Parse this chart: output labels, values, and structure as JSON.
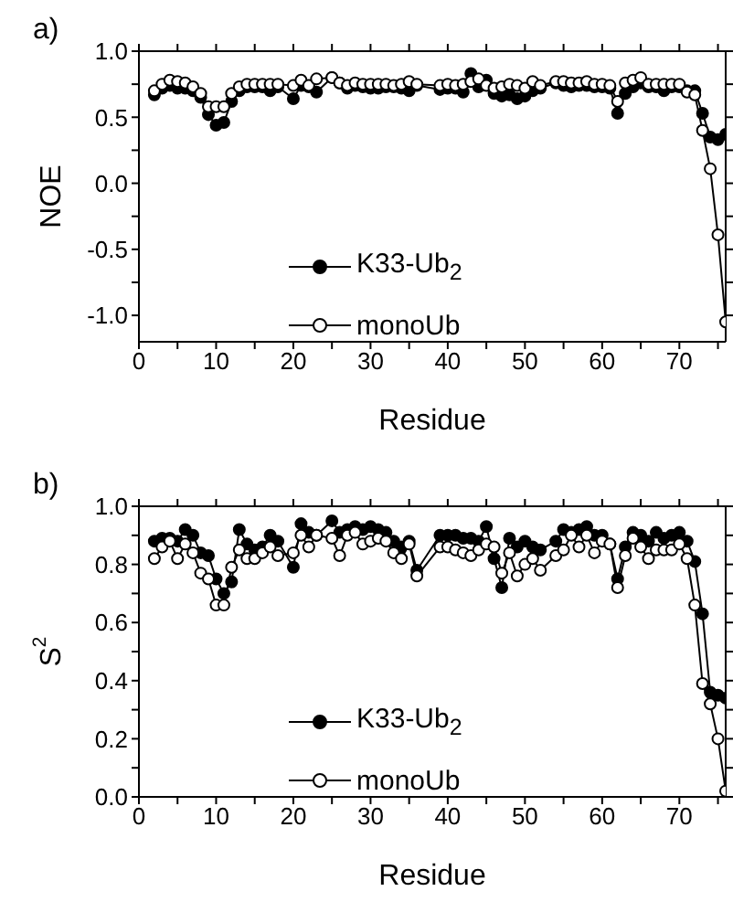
{
  "chart_data": [
    {
      "type": "line",
      "title": "a)",
      "xlabel": "Residue",
      "ylabel": "NOE",
      "marker": "circle",
      "line_style": "solid",
      "legend": "bottom",
      "xlim": [
        0,
        76
      ],
      "xticks": [
        0,
        {
          "value": 5,
          "label": null
        },
        10,
        {
          "value": 15,
          "label": null
        },
        20,
        {
          "value": 25,
          "label": null
        },
        30,
        {
          "value": 35,
          "label": null
        },
        40,
        {
          "value": 45,
          "label": null
        },
        50,
        {
          "value": 55,
          "label": null
        },
        60,
        {
          "value": 65,
          "label": null
        },
        70,
        {
          "value": 75,
          "label": null
        }
      ],
      "ylim": [
        -1.2,
        1.0
      ],
      "yticks": [
        {
          "value": -1.0,
          "label": "-1.0"
        },
        {
          "value": -0.75,
          "label": null
        },
        {
          "value": -0.5,
          "label": "-0.5"
        },
        {
          "value": -0.25,
          "label": null
        },
        {
          "value": 0,
          "label": "0.0"
        },
        {
          "value": 0.25,
          "label": null
        },
        {
          "value": 0.5,
          "label": "0.5"
        },
        {
          "value": 0.75,
          "label": null
        },
        {
          "value": 1.0,
          "label": "1.0"
        }
      ],
      "x": [
        2,
        3,
        4,
        5,
        6,
        7,
        8,
        9,
        10,
        11,
        12,
        13,
        14,
        15,
        16,
        17,
        18,
        20,
        21,
        22,
        23,
        25,
        26,
        27,
        28,
        29,
        30,
        31,
        32,
        33,
        34,
        35,
        36,
        39,
        40,
        41,
        42,
        43,
        44,
        45,
        46,
        47,
        48,
        49,
        50,
        51,
        52,
        54,
        55,
        56,
        57,
        58,
        59,
        60,
        61,
        62,
        63,
        64,
        65,
        66,
        67,
        68,
        69,
        70,
        71,
        72,
        73,
        74,
        75,
        76
      ],
      "series": [
        {
          "name": "K33-Ub$_{2}$",
          "color": "#000000",
          "values": [
            0.67,
            0.72,
            0.74,
            0.72,
            0.72,
            0.7,
            0.65,
            0.52,
            0.44,
            0.46,
            0.62,
            0.7,
            0.73,
            0.73,
            0.73,
            0.7,
            0.73,
            0.64,
            0.74,
            0.73,
            0.69,
            0.8,
            0.76,
            0.72,
            0.74,
            0.73,
            0.72,
            0.72,
            0.73,
            0.73,
            0.72,
            0.7,
            0.74,
            0.71,
            0.72,
            0.72,
            0.69,
            0.83,
            0.73,
            0.78,
            0.68,
            0.66,
            0.67,
            0.64,
            0.66,
            0.7,
            0.72,
            0.76,
            0.74,
            0.73,
            0.74,
            0.74,
            0.73,
            0.73,
            0.72,
            0.53,
            0.68,
            0.73,
            0.76,
            0.73,
            0.73,
            0.7,
            0.73,
            0.73,
            0.7,
            0.7,
            0.53,
            0.35,
            0.33,
            0.37
          ]
        },
        {
          "name": "monoUb",
          "color": "#ffffff",
          "values": [
            0.7,
            0.75,
            0.78,
            0.77,
            0.76,
            0.73,
            0.68,
            0.58,
            0.58,
            0.58,
            0.68,
            0.73,
            0.75,
            0.75,
            0.75,
            0.75,
            0.75,
            0.74,
            0.78,
            0.74,
            0.79,
            0.8,
            0.76,
            0.74,
            0.76,
            0.75,
            0.75,
            0.75,
            0.75,
            0.74,
            0.75,
            0.77,
            0.75,
            0.74,
            0.75,
            0.74,
            0.75,
            0.77,
            0.79,
            0.74,
            0.72,
            0.73,
            0.75,
            0.74,
            0.72,
            0.77,
            0.74,
            0.77,
            0.77,
            0.76,
            0.76,
            0.77,
            0.75,
            0.75,
            0.74,
            0.62,
            0.76,
            0.78,
            0.8,
            0.75,
            0.75,
            0.75,
            0.75,
            0.75,
            0.69,
            0.67,
            0.4,
            0.11,
            -0.39,
            -1.05
          ]
        }
      ]
    },
    {
      "type": "line",
      "title": "b)",
      "xlabel": "Residue",
      "ylabel": "S$^{2}$",
      "marker": "circle",
      "line_style": "solid",
      "legend": "bottom",
      "xlim": [
        0,
        76
      ],
      "xticks": [
        0,
        {
          "value": 5,
          "label": null
        },
        10,
        {
          "value": 15,
          "label": null
        },
        20,
        {
          "value": 25,
          "label": null
        },
        30,
        {
          "value": 35,
          "label": null
        },
        40,
        {
          "value": 45,
          "label": null
        },
        50,
        {
          "value": 55,
          "label": null
        },
        60,
        {
          "value": 65,
          "label": null
        },
        70,
        {
          "value": 75,
          "label": null
        }
      ],
      "ylim": [
        0,
        1.0
      ],
      "yticks": [
        {
          "value": 0,
          "label": "0.0"
        },
        {
          "value": 0.1,
          "label": null
        },
        {
          "value": 0.2,
          "label": "0.2"
        },
        {
          "value": 0.3,
          "label": null
        },
        {
          "value": 0.4,
          "label": "0.4"
        },
        {
          "value": 0.5,
          "label": null
        },
        {
          "value": 0.6,
          "label": "0.6"
        },
        {
          "value": 0.7,
          "label": null
        },
        {
          "value": 0.8,
          "label": "0.8"
        },
        {
          "value": 0.9,
          "label": null
        },
        {
          "value": 1.0,
          "label": "1.0"
        }
      ],
      "x": [
        2,
        3,
        4,
        5,
        6,
        7,
        8,
        9,
        10,
        11,
        12,
        13,
        14,
        15,
        16,
        17,
        18,
        20,
        21,
        22,
        23,
        25,
        26,
        27,
        28,
        29,
        30,
        31,
        32,
        33,
        34,
        35,
        36,
        39,
        40,
        41,
        42,
        43,
        44,
        45,
        46,
        47,
        48,
        49,
        50,
        51,
        52,
        54,
        55,
        56,
        57,
        58,
        59,
        60,
        61,
        62,
        63,
        64,
        65,
        66,
        67,
        68,
        69,
        70,
        71,
        72,
        73,
        74,
        75,
        76
      ],
      "series": [
        {
          "name": "K33-Ub$_{2}$",
          "color": "#000000",
          "values": [
            0.88,
            0.89,
            0.89,
            0.88,
            0.92,
            0.9,
            0.84,
            0.83,
            0.75,
            0.7,
            0.74,
            0.92,
            0.87,
            0.85,
            0.86,
            0.9,
            0.88,
            0.79,
            0.94,
            0.91,
            0.9,
            0.95,
            0.91,
            0.92,
            0.93,
            0.92,
            0.93,
            0.92,
            0.91,
            0.88,
            0.86,
            0.88,
            0.78,
            0.9,
            0.9,
            0.9,
            0.89,
            0.89,
            0.88,
            0.93,
            0.82,
            0.72,
            0.89,
            0.86,
            0.88,
            0.86,
            0.85,
            0.88,
            0.92,
            0.91,
            0.92,
            0.93,
            0.9,
            0.9,
            0.87,
            0.75,
            0.86,
            0.91,
            0.9,
            0.88,
            0.91,
            0.89,
            0.9,
            0.91,
            0.88,
            0.81,
            0.63,
            0.36,
            0.35,
            0.34
          ]
        },
        {
          "name": "monoUb",
          "color": "#ffffff",
          "values": [
            0.82,
            0.86,
            0.88,
            0.82,
            0.87,
            0.84,
            0.77,
            0.75,
            0.66,
            0.66,
            0.79,
            0.85,
            0.82,
            0.82,
            0.84,
            0.86,
            0.83,
            0.84,
            0.9,
            0.86,
            0.9,
            0.89,
            0.83,
            0.9,
            0.91,
            0.87,
            0.88,
            0.89,
            0.88,
            0.84,
            0.82,
            0.87,
            0.76,
            0.86,
            0.86,
            0.85,
            0.84,
            0.83,
            0.85,
            0.87,
            0.86,
            0.77,
            0.84,
            0.76,
            0.8,
            0.82,
            0.78,
            0.83,
            0.85,
            0.9,
            0.86,
            0.9,
            0.84,
            0.88,
            0.87,
            0.72,
            0.83,
            0.89,
            0.86,
            0.82,
            0.85,
            0.85,
            0.85,
            0.87,
            0.82,
            0.66,
            0.39,
            0.32,
            0.2,
            0.02
          ]
        }
      ]
    }
  ]
}
